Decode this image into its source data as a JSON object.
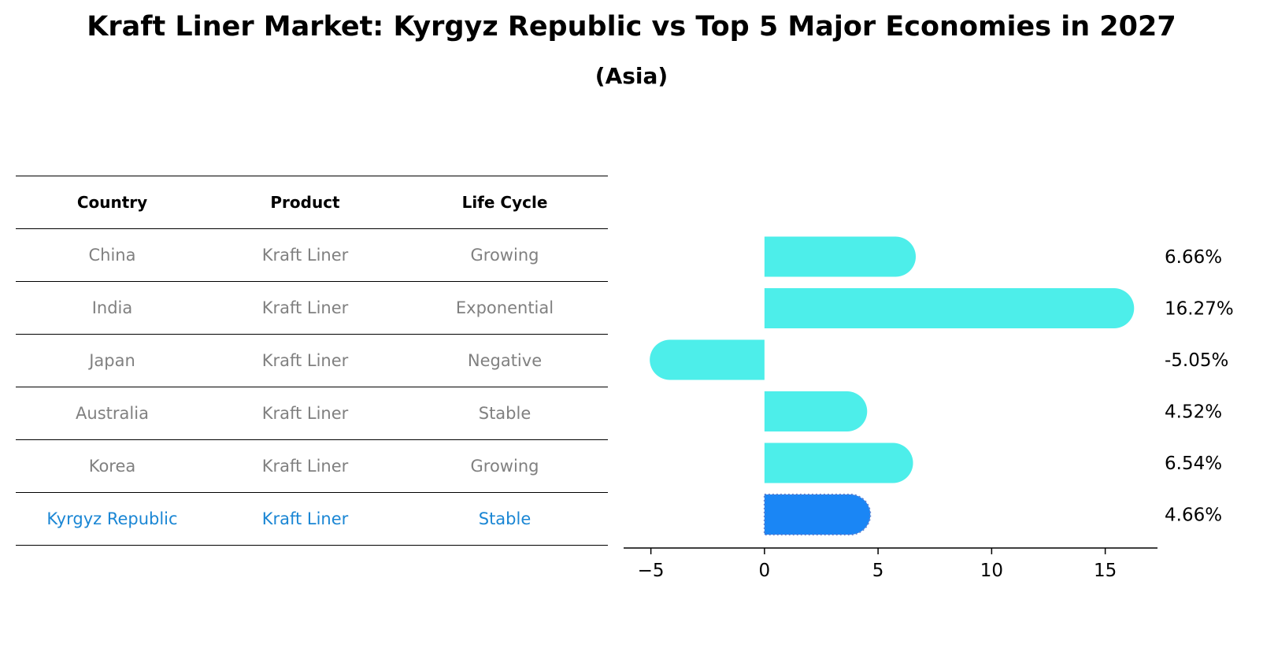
{
  "title": "Kraft Liner Market: Kyrgyz Republic vs Top 5 Major Economies in 2027",
  "subtitle": "(Asia)",
  "table": {
    "headers": [
      "Country",
      "Product",
      "Life Cycle"
    ],
    "rows": [
      [
        "China",
        "Kraft Liner",
        "Growing"
      ],
      [
        "India",
        "Kraft Liner",
        "Exponential"
      ],
      [
        "Japan",
        "Kraft Liner",
        "Negative"
      ],
      [
        "Australia",
        "Kraft Liner",
        "Stable"
      ],
      [
        "Korea",
        "Kraft Liner",
        "Growing"
      ],
      [
        "Kyrgyz Republic",
        "Kraft Liner",
        "Stable"
      ]
    ],
    "highlight_row": 5,
    "colors": {
      "text": "#808080",
      "highlight": "#1a86d4"
    }
  },
  "chart_data": {
    "type": "bar",
    "orientation": "horizontal",
    "categories": [
      "China",
      "India",
      "Japan",
      "Australia",
      "Korea",
      "Kyrgyz Republic"
    ],
    "values": [
      6.66,
      16.27,
      -5.05,
      4.52,
      6.54,
      4.66
    ],
    "value_labels": [
      "6.66%",
      "16.27%",
      "-5.05%",
      "4.52%",
      "6.54%",
      "4.66%"
    ],
    "xlim": [
      -6.2,
      17.3
    ],
    "xticks": [
      -5,
      0,
      5,
      10,
      15
    ],
    "xtick_labels": [
      "−5",
      "0",
      "5",
      "10",
      "15"
    ],
    "grid": false,
    "colors": {
      "default": "#4deeea",
      "highlight": "#1a86f5"
    },
    "highlight_index": 5
  }
}
